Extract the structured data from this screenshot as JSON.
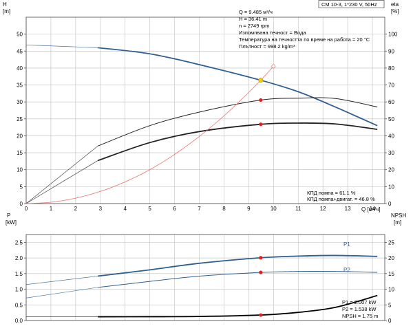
{
  "title_box": "CM 10-3, 1*230 V, 50Hz",
  "axes": {
    "head_label": "H",
    "head_unit": "[m]",
    "eta_label": "eta",
    "eta_unit": "[%]",
    "flow_label": "Q [м³/ч]",
    "power_label": "P",
    "power_unit": "[kW]",
    "npsh_label": "NPSH",
    "npsh_unit": "[m]"
  },
  "info_top": [
    "Q = 9.485 м³/ч",
    "H = 36.41 m",
    "n = 2749 rpm",
    "Изпомпвана течност = Вода",
    "Температура на течността по време на работа = 20 °C",
    "Плътност = 998.2 kg/m³"
  ],
  "info_eff": [
    "КПД помпа = 61.1 %",
    "КПД помпа+двигат. = 46.8 %"
  ],
  "info_bottom": [
    "P1 = 2.007 kW",
    "P2 = 1.538 kW",
    "NPSH = 1.75 m"
  ],
  "colors": {
    "head": "#2e5f8f",
    "power": "#2e5f8f",
    "efficiency": "#222222",
    "system": "#e8706c",
    "npsh": "#000000",
    "duty_point": "#e02020",
    "operating_point": "#f5c518"
  },
  "chart_data": [
    {
      "type": "line",
      "panel": "top",
      "xlabel": "Q [м³/ч]",
      "ylabel": "H [m]",
      "y2label": "eta [%]",
      "xlim": [
        0,
        14.5
      ],
      "ylim": [
        0,
        55
      ],
      "y2lim": [
        0,
        110
      ],
      "xticks": [
        0,
        1,
        2,
        3,
        4,
        5,
        6,
        7,
        8,
        9,
        10,
        11,
        12,
        13,
        14
      ],
      "yticks": [
        0,
        5,
        10,
        15,
        20,
        25,
        30,
        35,
        40,
        45,
        50
      ],
      "y2ticks": [
        0,
        10,
        20,
        30,
        40,
        50,
        60,
        70,
        80,
        90,
        100
      ],
      "grid": true,
      "series": [
        {
          "key": "head",
          "axis": "left",
          "x": [
            0,
            2.9,
            5,
            7,
            9.485,
            11,
            12.5,
            14.2
          ],
          "y": [
            46.8,
            46.0,
            44.2,
            41.0,
            36.4,
            33.0,
            28.5,
            23.0
          ],
          "dotted_below": 2.9
        },
        {
          "key": "eta_pump",
          "axis": "right",
          "x": [
            0,
            2.9,
            5,
            7,
            9.485,
            11,
            12.5,
            14.2
          ],
          "y": [
            0,
            34,
            46,
            54,
            61.1,
            62.2,
            62.0,
            57.0
          ],
          "dotted_below": 2.9
        },
        {
          "key": "eta_total",
          "axis": "right",
          "x": [
            0,
            2.9,
            5,
            7,
            9.485,
            11,
            12.5,
            14.2
          ],
          "y": [
            0,
            25.4,
            36,
            42.5,
            46.8,
            47.5,
            47.0,
            43.8
          ],
          "dotted_below": 2.9
        },
        {
          "key": "system",
          "axis": "left",
          "x": [
            0,
            1,
            2,
            3,
            4,
            5,
            6,
            7,
            8,
            9,
            9.485,
            10
          ],
          "y": [
            0,
            0.4,
            1.6,
            3.6,
            6.4,
            10.0,
            14.5,
            19.8,
            25.9,
            32.8,
            36.4,
            40.5
          ]
        }
      ],
      "points": [
        {
          "key": "operating_point",
          "x": 9.485,
          "y": 36.4,
          "axis": "left"
        },
        {
          "key": "eta_pump_point",
          "x": 9.485,
          "y": 61.1,
          "axis": "right"
        },
        {
          "key": "eta_total_point",
          "x": 9.485,
          "y": 46.8,
          "axis": "right"
        },
        {
          "key": "system_end",
          "x": 10,
          "y": 40.5,
          "axis": "left"
        }
      ]
    },
    {
      "type": "line",
      "panel": "bottom",
      "xlim": [
        0,
        14.5
      ],
      "ylim": [
        0,
        2.75
      ],
      "y2lim": [
        0,
        27.5
      ],
      "yticks": [
        0.0,
        0.5,
        1.0,
        1.5,
        2.0,
        2.5
      ],
      "y2ticks": [
        0,
        5,
        10,
        15,
        20,
        25
      ],
      "grid": true,
      "series": [
        {
          "name": "P1",
          "key": "p1",
          "axis": "left",
          "x": [
            0,
            2.9,
            5,
            7,
            9.485,
            11,
            12.5,
            14.2
          ],
          "y": [
            1.15,
            1.42,
            1.62,
            1.83,
            2.007,
            2.06,
            2.08,
            2.05
          ],
          "dotted_below": 2.9
        },
        {
          "name": "P2",
          "key": "p2",
          "axis": "left",
          "x": [
            0,
            2.9,
            5,
            7,
            9.485,
            11,
            12.5,
            14.2
          ],
          "y": [
            0.72,
            1.06,
            1.25,
            1.42,
            1.538,
            1.57,
            1.57,
            1.54
          ],
          "dotted_below": 2.9
        },
        {
          "key": "npsh",
          "axis": "right",
          "x": [
            0,
            2.9,
            5,
            7,
            9.485,
            11,
            12.5,
            14.2
          ],
          "y": [
            1.2,
            1.2,
            1.22,
            1.3,
            1.75,
            2.6,
            4.2,
            8.0
          ],
          "dotted_below": 2.9
        }
      ],
      "points": [
        {
          "key": "p1_point",
          "x": 9.485,
          "y": 2.007,
          "axis": "left"
        },
        {
          "key": "p2_point",
          "x": 9.485,
          "y": 1.538,
          "axis": "left"
        },
        {
          "key": "npsh_point",
          "x": 9.485,
          "y": 1.75,
          "axis": "right"
        }
      ]
    }
  ]
}
